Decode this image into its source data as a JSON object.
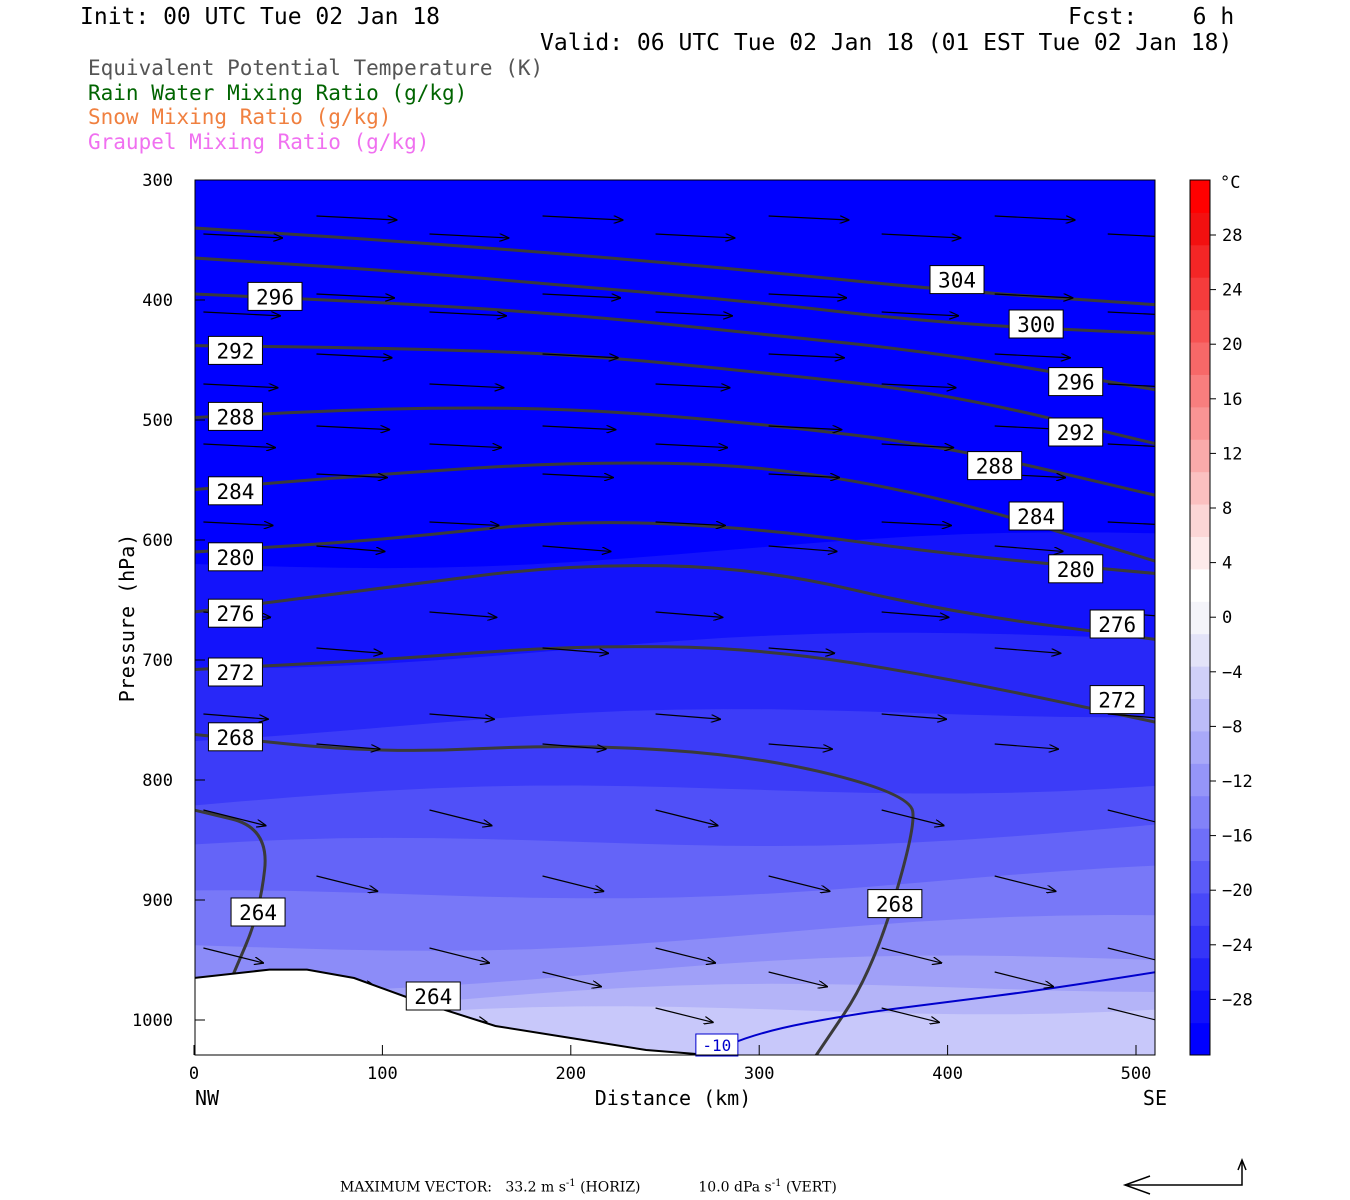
{
  "header": {
    "init": "Init: 00 UTC Tue 02 Jan 18",
    "fcst": "Fcst:    6 h",
    "valid": "Valid: 06 UTC Tue 02 Jan 18 (01 EST Tue 02 Jan 18)"
  },
  "legend": [
    {
      "text": "Equivalent Potential Temperature (K)",
      "color": "#555555"
    },
    {
      "text": "Rain Water Mixing Ratio (g/kg)",
      "color": "#006400"
    },
    {
      "text": "Snow Mixing Ratio (g/kg)",
      "color": "#f08040"
    },
    {
      "text": "Graupel Mixing Ratio (g/kg)",
      "color": "#f070f0"
    }
  ],
  "chart_data": {
    "type": "heatmap",
    "description_type": "cross-section",
    "xlabel": "Distance (km)",
    "ylabel": "Pressure (hPa)",
    "x_ticks": [
      0,
      100,
      200,
      300,
      400,
      500
    ],
    "y_ticks": [
      300,
      400,
      500,
      600,
      700,
      800,
      900,
      1000
    ],
    "xlim": [
      0,
      511
    ],
    "ylim": [
      300,
      1030
    ],
    "y_inverted": true,
    "left_endpoint": "NW",
    "right_endpoint": "SE",
    "colorbar": {
      "unit": "°C",
      "labels": [
        28,
        24,
        20,
        16,
        12,
        8,
        4,
        0,
        -4,
        -8,
        -12,
        -16,
        -20,
        -24,
        -28
      ],
      "colors": [
        "#0000ff",
        "#1010fb",
        "#2222f8",
        "#3535f8",
        "#4848f8",
        "#5b5bf8",
        "#6f6ff8",
        "#8282f8",
        "#9595f8",
        "#a9a9f8",
        "#bcbcf8",
        "#d0d0f8",
        "#e3e3f8",
        "#f4f4fa",
        "#ffffff",
        "#fdeaea",
        "#fcd6d6",
        "#fbc0c0",
        "#faaaaa",
        "#f99494",
        "#f87e7e",
        "#f76868",
        "#f65252",
        "#f53c3c",
        "#f42626",
        "#f31010",
        "#ff0000"
      ]
    },
    "theta_e_contours": [
      {
        "value": 304,
        "points": [
          [
            0,
            340
          ],
          [
            100,
            350
          ],
          [
            200,
            362
          ],
          [
            300,
            376
          ],
          [
            400,
            392
          ],
          [
            511,
            404
          ]
        ]
      },
      {
        "value": 300,
        "points": [
          [
            0,
            365
          ],
          [
            100,
            375
          ],
          [
            200,
            388
          ],
          [
            300,
            402
          ],
          [
            400,
            420
          ],
          [
            511,
            428
          ]
        ]
      },
      {
        "value": 296,
        "points": [
          [
            0,
            395
          ],
          [
            100,
            402
          ],
          [
            200,
            412
          ],
          [
            300,
            428
          ],
          [
            400,
            445
          ],
          [
            511,
            475
          ]
        ]
      },
      {
        "value": 292,
        "points": [
          [
            0,
            438
          ],
          [
            100,
            440
          ],
          [
            200,
            445
          ],
          [
            300,
            460
          ],
          [
            400,
            478
          ],
          [
            511,
            520
          ]
        ]
      },
      {
        "value": 288,
        "points": [
          [
            0,
            498
          ],
          [
            100,
            490
          ],
          [
            200,
            490
          ],
          [
            300,
            503
          ],
          [
            400,
            522
          ],
          [
            511,
            563
          ]
        ]
      },
      {
        "value": 284,
        "points": [
          [
            0,
            558
          ],
          [
            100,
            545
          ],
          [
            200,
            535
          ],
          [
            300,
            537
          ],
          [
            400,
            565
          ],
          [
            511,
            618
          ]
        ]
      },
      {
        "value": 280,
        "points": [
          [
            0,
            610
          ],
          [
            100,
            600
          ],
          [
            200,
            583
          ],
          [
            300,
            590
          ],
          [
            400,
            612
          ],
          [
            511,
            628
          ]
        ]
      },
      {
        "value": 276,
        "points": [
          [
            0,
            660
          ],
          [
            100,
            640
          ],
          [
            200,
            620
          ],
          [
            300,
            623
          ],
          [
            400,
            660
          ],
          [
            511,
            683
          ]
        ]
      },
      {
        "value": 272,
        "points": [
          [
            0,
            708
          ],
          [
            100,
            700
          ],
          [
            200,
            688
          ],
          [
            300,
            690
          ],
          [
            400,
            715
          ],
          [
            511,
            752
          ]
        ]
      },
      {
        "value": 268,
        "points": [
          [
            0,
            762
          ],
          [
            100,
            778
          ],
          [
            200,
            770
          ],
          [
            300,
            780
          ],
          [
            380,
            812
          ],
          [
            383,
            840
          ],
          [
            360,
            960
          ],
          [
            330,
            1030
          ]
        ]
      },
      {
        "value": 264,
        "points": [
          [
            0,
            825
          ],
          [
            40,
            840
          ],
          [
            35,
            910
          ],
          [
            20,
            965
          ]
        ]
      }
    ],
    "contour_labels": [
      {
        "value": 304,
        "x": 405,
        "y": 383
      },
      {
        "value": 300,
        "x": 447,
        "y": 420
      },
      {
        "value": 296,
        "x": 43,
        "y": 397
      },
      {
        "value": 296,
        "x": 468,
        "y": 468
      },
      {
        "value": 292,
        "x": 22,
        "y": 442
      },
      {
        "value": 292,
        "x": 468,
        "y": 510
      },
      {
        "value": 288,
        "x": 22,
        "y": 497
      },
      {
        "value": 288,
        "x": 425,
        "y": 538
      },
      {
        "value": 284,
        "x": 22,
        "y": 559
      },
      {
        "value": 284,
        "x": 447,
        "y": 580
      },
      {
        "value": 280,
        "x": 22,
        "y": 614
      },
      {
        "value": 280,
        "x": 468,
        "y": 624
      },
      {
        "value": 276,
        "x": 22,
        "y": 661
      },
      {
        "value": 276,
        "x": 490,
        "y": 670
      },
      {
        "value": 272,
        "x": 22,
        "y": 710
      },
      {
        "value": 272,
        "x": 490,
        "y": 733
      },
      {
        "value": 268,
        "x": 22,
        "y": 764
      },
      {
        "value": 268,
        "x": 372,
        "y": 903
      },
      {
        "value": 264,
        "x": 34,
        "y": 910
      },
      {
        "value": 264,
        "x": 127,
        "y": 980
      }
    ],
    "temperature_contour": {
      "value": -10,
      "label": "-10",
      "points": [
        [
          270,
          1030
        ],
        [
          300,
          1010
        ],
        [
          350,
          995
        ],
        [
          400,
          985
        ],
        [
          450,
          975
        ],
        [
          511,
          960
        ]
      ]
    },
    "terrain": [
      [
        0,
        965
      ],
      [
        40,
        958
      ],
      [
        60,
        958
      ],
      [
        85,
        965
      ],
      [
        120,
        985
      ],
      [
        160,
        1005
      ],
      [
        200,
        1015
      ],
      [
        240,
        1025
      ],
      [
        280,
        1030
      ],
      [
        511,
        1030
      ]
    ],
    "wind_vectors_note": "circulation vectors (horizontal wind and vertical motion)",
    "footer": {
      "max_vector_label": "MAXIMUM VECTOR:",
      "horiz": "33.2 m s",
      "horiz_unit": "-1",
      "horiz_tag": "(HORIZ)",
      "vert": "10.0 dPa s",
      "vert_unit": "-1",
      "vert_tag": "(VERT)"
    }
  }
}
